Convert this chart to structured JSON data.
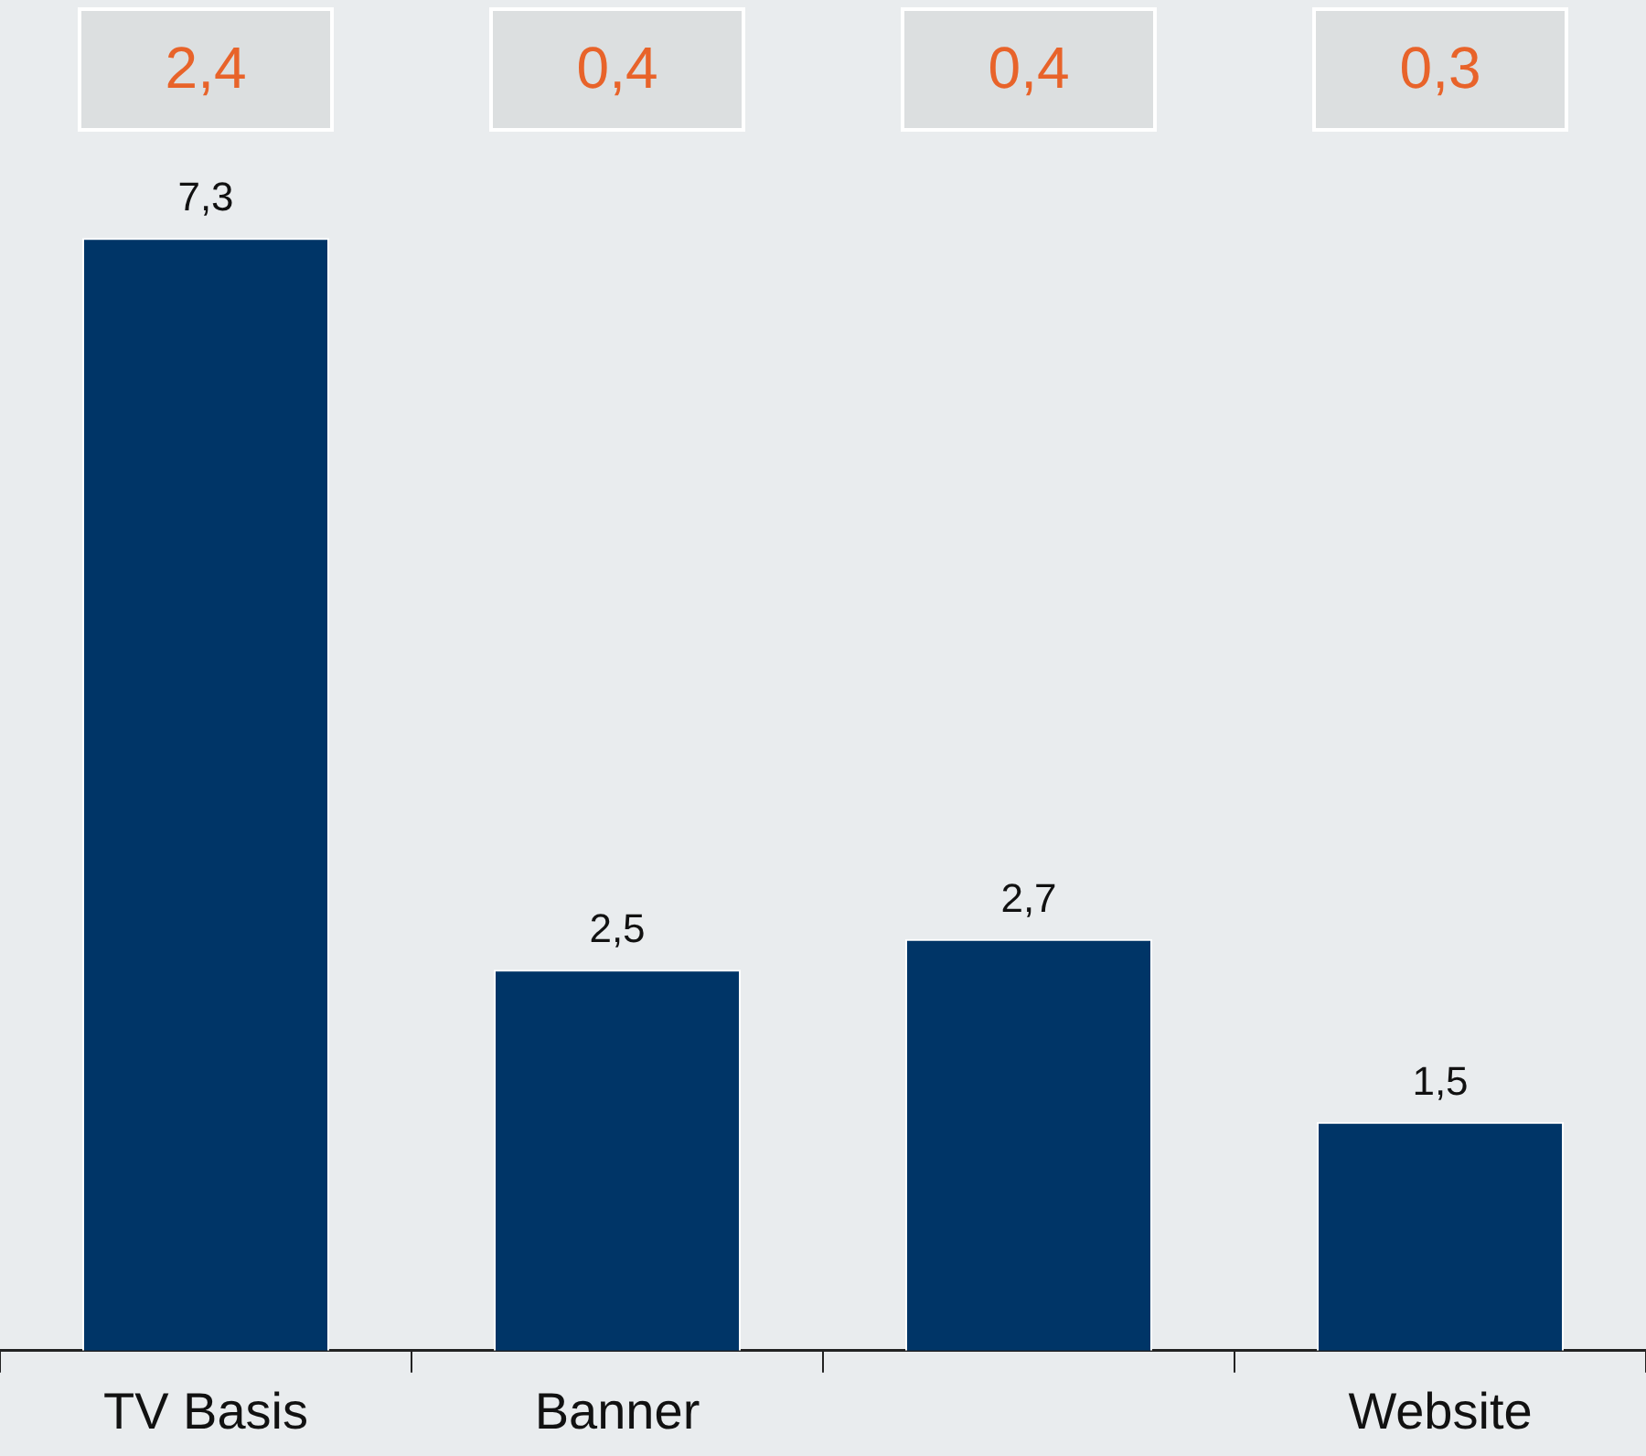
{
  "chart_data": {
    "type": "bar",
    "categories": [
      "TV Basis",
      "Banner",
      null,
      "Website"
    ],
    "values": [
      7.3,
      2.5,
      2.7,
      1.5
    ],
    "color": "#003567",
    "value_labels": [
      "7,3",
      "2,5",
      "2,7",
      "1,5"
    ],
    "annotations": [
      "2,4",
      "0,4",
      "0,4",
      "0,3"
    ],
    "legend": false,
    "grid": false
  }
}
